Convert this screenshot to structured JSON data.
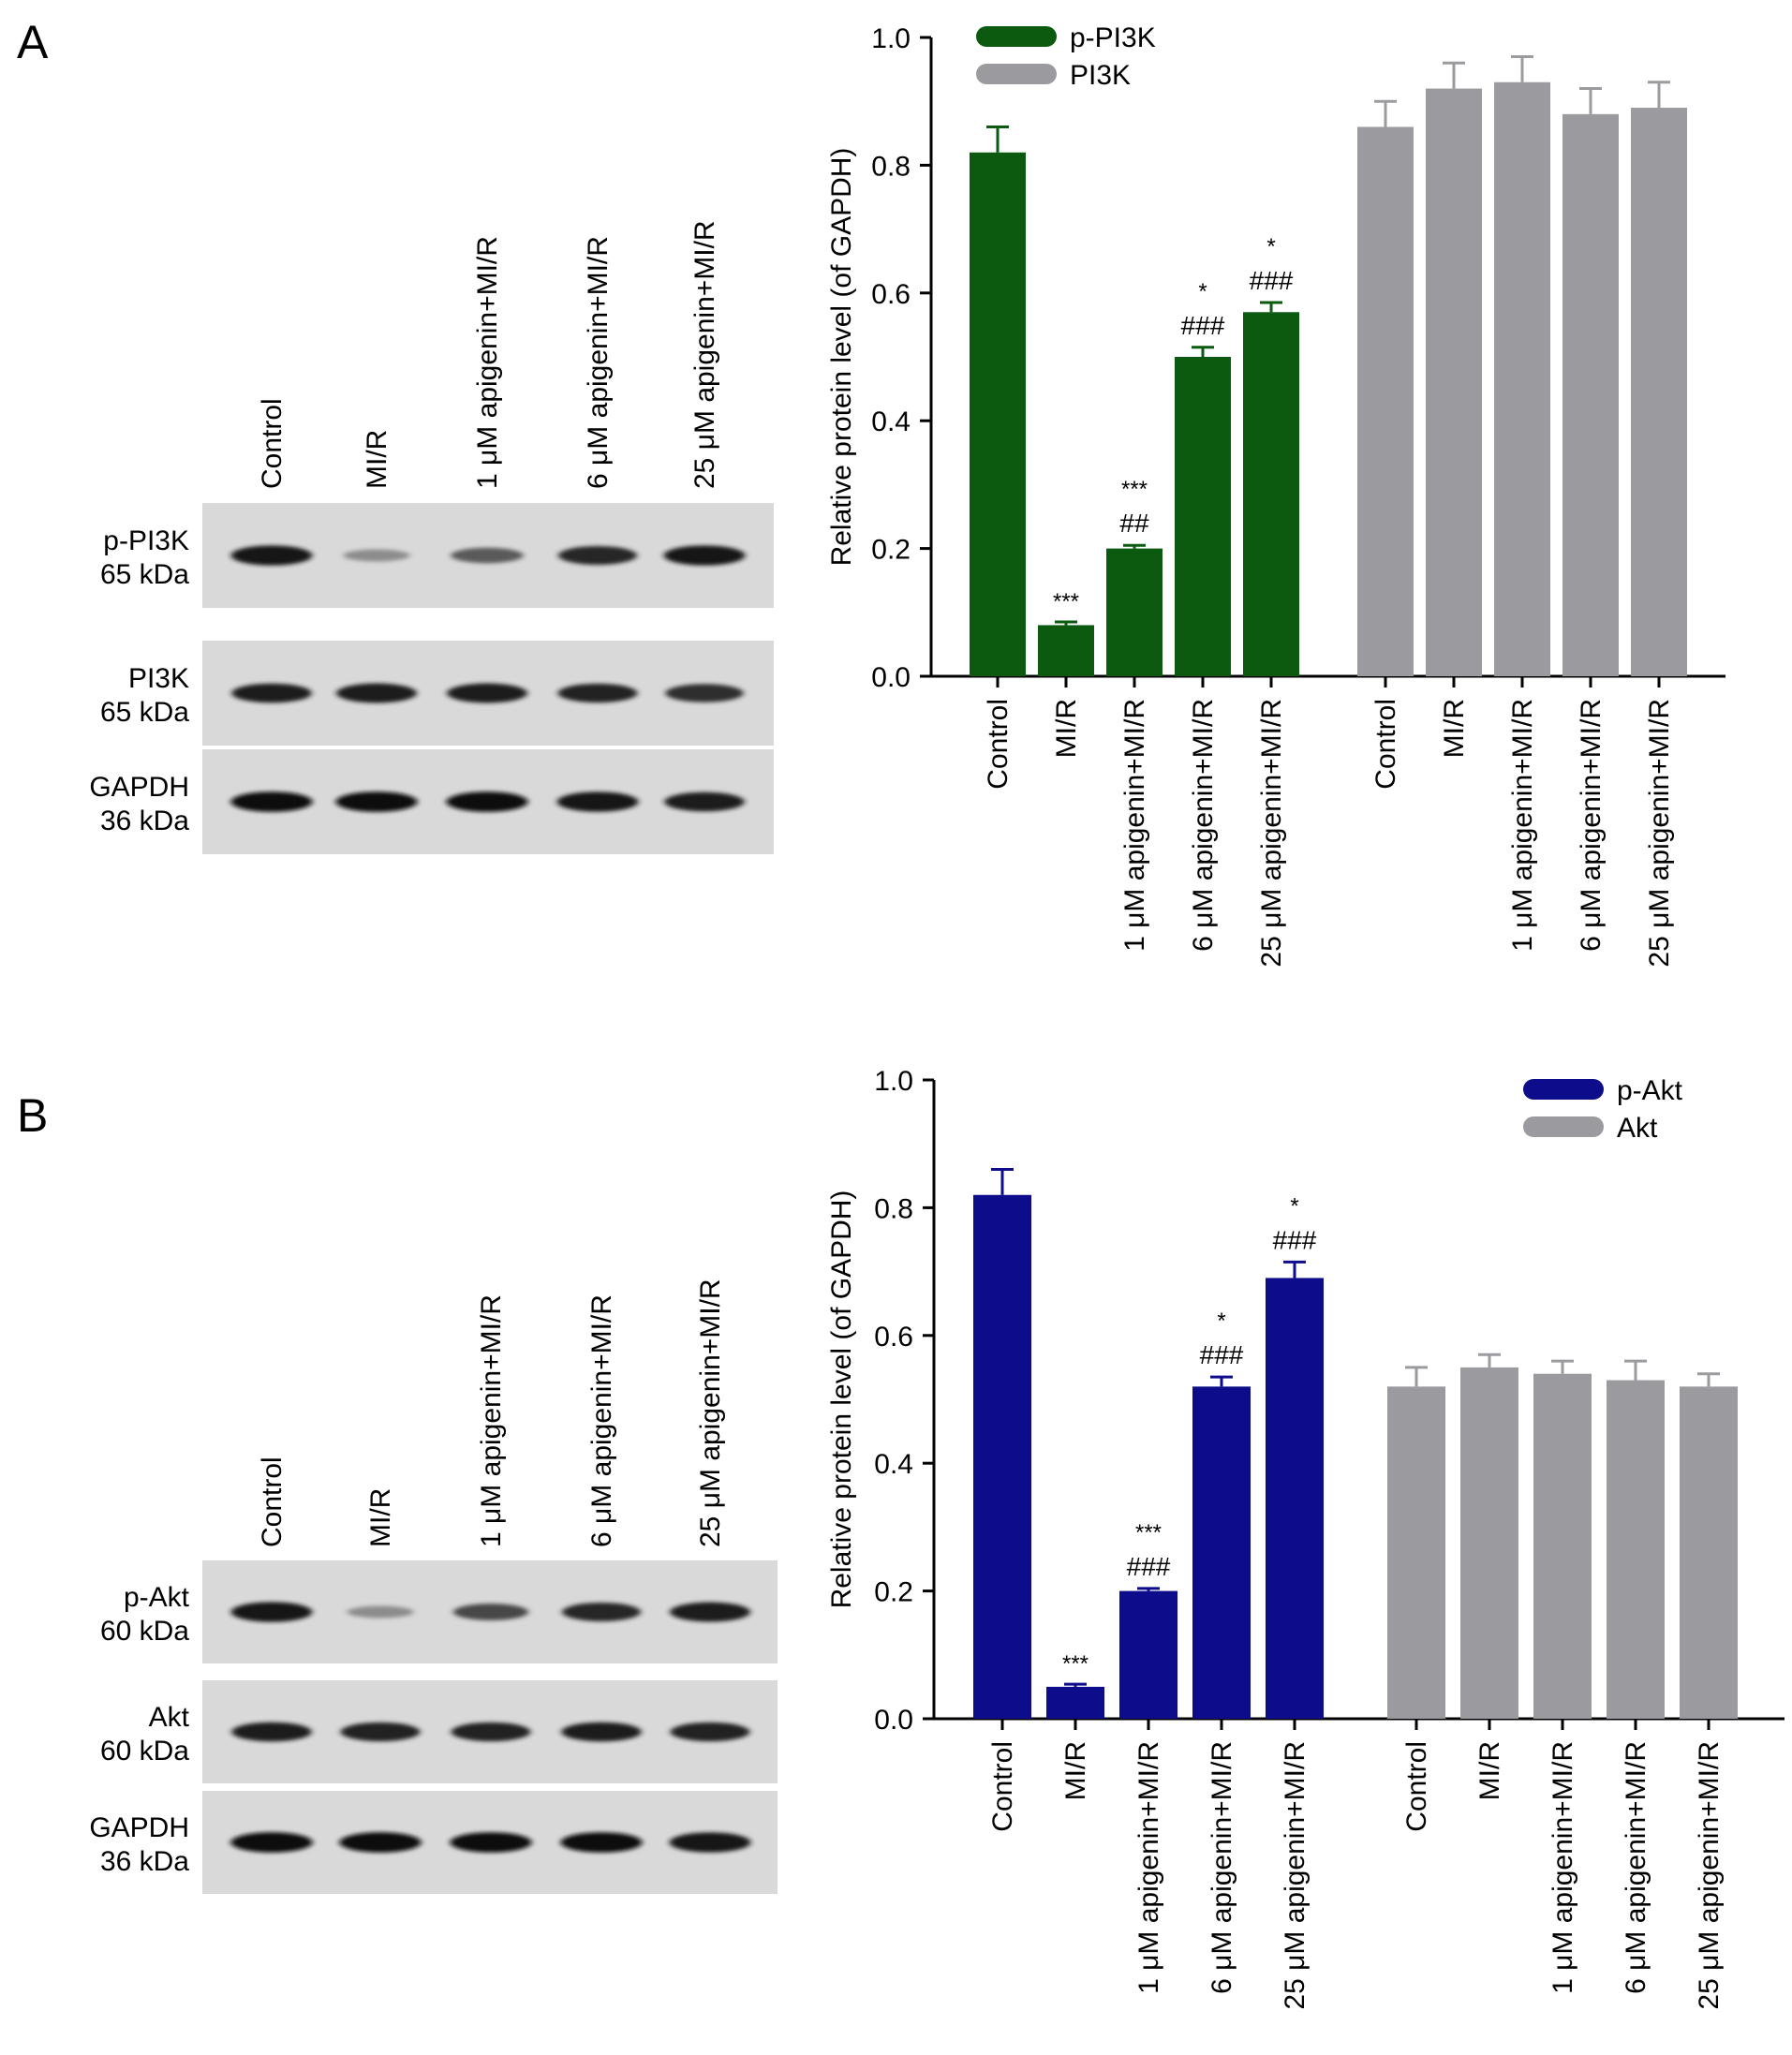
{
  "panels": [
    {
      "letter": "A",
      "lanes": [
        "Control",
        "MI/R",
        "1 μM apigenin+MI/R",
        "6 μM apigenin+MI/R",
        "25 μM apigenin+MI/R"
      ],
      "blots": [
        {
          "name": "p-PI3K",
          "kda": "65 kDa",
          "intensity": [
            0.95,
            0.35,
            0.6,
            0.85,
            0.95
          ]
        },
        {
          "name": "PI3K",
          "kda": "65 kDa",
          "intensity": [
            0.9,
            0.92,
            0.92,
            0.88,
            0.82
          ]
        },
        {
          "name": "GAPDH",
          "kda": "36 kDa",
          "intensity": [
            0.97,
            0.97,
            0.97,
            0.95,
            0.9
          ]
        }
      ]
    },
    {
      "letter": "B",
      "lanes": [
        "Control",
        "MI/R",
        "1 μM apigenin+MI/R",
        "6 μM apigenin+MI/R",
        "25 μM apigenin+MI/R"
      ],
      "blots": [
        {
          "name": "p-Akt",
          "kda": "60 kDa",
          "intensity": [
            0.95,
            0.35,
            0.7,
            0.85,
            0.92
          ]
        },
        {
          "name": "Akt",
          "kda": "60 kDa",
          "intensity": [
            0.9,
            0.88,
            0.88,
            0.9,
            0.88
          ]
        },
        {
          "name": "GAPDH",
          "kda": "36 kDa",
          "intensity": [
            0.98,
            0.98,
            0.97,
            0.97,
            0.95
          ]
        }
      ]
    }
  ],
  "chart_data": [
    {
      "type": "bar",
      "ylabel": "Relative protein level (of GAPDH)",
      "ylim": [
        0,
        1.0
      ],
      "yticks": [
        "0.0",
        "0.2",
        "0.4",
        "0.6",
        "0.8",
        "1.0"
      ],
      "legend_position": "top-left",
      "categories": [
        "Control",
        "MI/R",
        "1 μM apigenin+MI/R",
        "6 μM apigenin+MI/R",
        "25 μM apigenin+MI/R"
      ],
      "series": [
        {
          "name": "p-PI3K",
          "color": "#0b5a10",
          "values": [
            0.82,
            0.08,
            0.2,
            0.5,
            0.57
          ],
          "errors": [
            0.04,
            0.005,
            0.005,
            0.015,
            0.015
          ],
          "annotations": [
            [],
            [
              "***"
            ],
            [
              "***",
              "##"
            ],
            [
              "*",
              "###"
            ],
            [
              "*",
              "###"
            ]
          ]
        },
        {
          "name": "PI3K",
          "color": "#9b9b9f",
          "values": [
            0.86,
            0.92,
            0.93,
            0.88,
            0.89
          ],
          "errors": [
            0.04,
            0.04,
            0.04,
            0.04,
            0.04
          ],
          "annotations": [
            [],
            [],
            [],
            [],
            []
          ]
        }
      ]
    },
    {
      "type": "bar",
      "ylabel": "Relative protein level (of GAPDH)",
      "ylim": [
        0,
        1.0
      ],
      "yticks": [
        "0.0",
        "0.2",
        "0.4",
        "0.6",
        "0.8",
        "1.0"
      ],
      "legend_position": "top-right",
      "categories": [
        "Control",
        "MI/R",
        "1 μM apigenin+MI/R",
        "6 μM apigenin+MI/R",
        "25 μM apigenin+MI/R"
      ],
      "series": [
        {
          "name": "p-Akt",
          "color": "#0d0d8c",
          "values": [
            0.82,
            0.05,
            0.2,
            0.52,
            0.69
          ],
          "errors": [
            0.04,
            0.004,
            0.004,
            0.015,
            0.025
          ],
          "annotations": [
            [],
            [
              "***"
            ],
            [
              "***",
              "###"
            ],
            [
              "*",
              "###"
            ],
            [
              "*",
              "###"
            ]
          ]
        },
        {
          "name": "Akt",
          "color": "#9b9b9f",
          "values": [
            0.52,
            0.55,
            0.54,
            0.53,
            0.52
          ],
          "errors": [
            0.03,
            0.02,
            0.02,
            0.03,
            0.02
          ],
          "annotations": [
            [],
            [],
            [],
            [],
            []
          ]
        }
      ]
    }
  ]
}
